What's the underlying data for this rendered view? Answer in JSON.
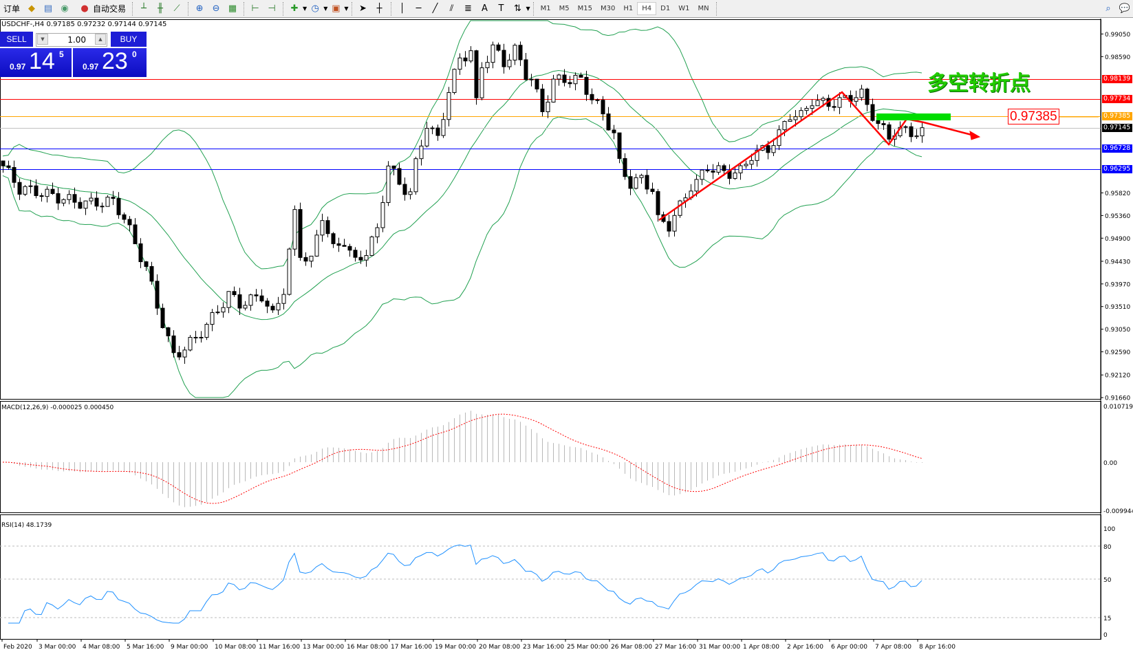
{
  "toolbar": {
    "new_order_label": "订单",
    "auto_trading_label": "自动交易",
    "timeframes": [
      "M1",
      "M5",
      "M15",
      "M30",
      "H1",
      "H4",
      "D1",
      "W1",
      "MN"
    ],
    "active_timeframe": "H4"
  },
  "chart": {
    "info": "USDCHF-,H4  0.97185 0.97232 0.97144 0.97145",
    "symbol": "USDCHF-",
    "timeframe": "H4",
    "ohlc": {
      "open": 0.97185,
      "high": 0.97232,
      "low": 0.97144,
      "close": 0.97145
    }
  },
  "trade_panel": {
    "sell_label": "SELL",
    "buy_label": "BUY",
    "lot": "1.00",
    "sell_price": {
      "prefix": "0.97",
      "big": "14",
      "sup": "5"
    },
    "buy_price": {
      "prefix": "0.97",
      "big": "23",
      "sup": "0"
    }
  },
  "price_axis": {
    "ticks": [
      "0.99050",
      "0.98590",
      "0.98139",
      "0.97734",
      "0.97385",
      "0.97145",
      "0.96728",
      "0.96295",
      "0.95820",
      "0.95360",
      "0.94900",
      "0.94430",
      "0.93970",
      "0.93510",
      "0.93050",
      "0.92590",
      "0.92120",
      "0.91660"
    ],
    "range": [
      0.9166,
      0.9905
    ]
  },
  "levels": [
    {
      "price": "0.98139",
      "color": "#ff0000"
    },
    {
      "price": "0.97734",
      "color": "#ff0000"
    },
    {
      "price": "0.97385",
      "color": "#ffa500"
    },
    {
      "price": "0.97145",
      "color": "#000000"
    },
    {
      "price": "0.96728",
      "color": "#0000ff"
    },
    {
      "price": "0.96295",
      "color": "#0000ff"
    }
  ],
  "annotation": {
    "text": "多空转折点",
    "price_label": "0.97385",
    "text_color": "#22cc00",
    "arrow_color": "#ff0000"
  },
  "macd": {
    "label": "MACD(12,26,9) -0.000025 0.000450",
    "axis": [
      "0.010719",
      "0.00",
      "-0.009944"
    ]
  },
  "rsi": {
    "label": "RSI(14) 48.1739",
    "axis": [
      "100",
      "80",
      "50",
      "15",
      "0"
    ],
    "levels": [
      80,
      50,
      15
    ],
    "color": "#1e90ff"
  },
  "time_axis": [
    "Feb 2020",
    "3 Mar 00:00",
    "4 Mar 08:00",
    "5 Mar 16:00",
    "9 Mar 00:00",
    "10 Mar 08:00",
    "11 Mar 16:00",
    "13 Mar 00:00",
    "16 Mar 08:00",
    "17 Mar 16:00",
    "19 Mar 00:00",
    "20 Mar 08:00",
    "23 Mar 16:00",
    "25 Mar 00:00",
    "26 Mar 08:00",
    "27 Mar 16:00",
    "31 Mar 00:00",
    "1 Apr 08:00",
    "2 Apr 16:00",
    "6 Apr 00:00",
    "7 Apr 08:00",
    "8 Apr 16:00"
  ],
  "chart_data": {
    "type": "candlestick",
    "close_keypoints": [
      [
        0,
        0.9637
      ],
      [
        3,
        0.9585
      ],
      [
        5,
        0.9581
      ],
      [
        11,
        0.9575
      ],
      [
        16,
        0.9563
      ],
      [
        20,
        0.9559
      ],
      [
        22,
        0.9526
      ],
      [
        24,
        0.9475
      ],
      [
        26,
        0.9431
      ],
      [
        28,
        0.9358
      ],
      [
        31,
        0.9255
      ],
      [
        33,
        0.927
      ],
      [
        35,
        0.9284
      ],
      [
        38,
        0.9321
      ],
      [
        41,
        0.9372
      ],
      [
        43,
        0.9358
      ],
      [
        47,
        0.938
      ],
      [
        49,
        0.9336
      ],
      [
        51,
        0.9387
      ],
      [
        53,
        0.9534
      ],
      [
        54,
        0.9453
      ],
      [
        56,
        0.9438
      ],
      [
        58,
        0.9534
      ],
      [
        60,
        0.9468
      ],
      [
        62,
        0.949
      ],
      [
        64,
        0.9446
      ],
      [
        66,
        0.9468
      ],
      [
        68,
        0.9504
      ],
      [
        70,
        0.9637
      ],
      [
        72,
        0.9592
      ],
      [
        74,
        0.9578
      ],
      [
        75,
        0.9637
      ],
      [
        77,
        0.9725
      ],
      [
        79,
        0.9695
      ],
      [
        81,
        0.9798
      ],
      [
        83,
        0.9857
      ],
      [
        85,
        0.9871
      ],
      [
        86,
        0.9761
      ],
      [
        87,
        0.9835
      ],
      [
        89,
        0.9871
      ],
      [
        91,
        0.9842
      ],
      [
        93,
        0.9871
      ],
      [
        95,
        0.9827
      ],
      [
        96,
        0.982
      ],
      [
        98,
        0.9754
      ],
      [
        100,
        0.9813
      ],
      [
        102,
        0.9813
      ],
      [
        105,
        0.9805
      ],
      [
        107,
        0.9769
      ],
      [
        109,
        0.9739
      ],
      [
        111,
        0.9703
      ],
      [
        112,
        0.9644
      ],
      [
        114,
        0.9607
      ],
      [
        116,
        0.9615
      ],
      [
        118,
        0.9592
      ],
      [
        119,
        0.9526
      ],
      [
        121,
        0.9512
      ],
      [
        123,
        0.9548
      ],
      [
        125,
        0.9592
      ],
      [
        126,
        0.96
      ],
      [
        128,
        0.9637
      ],
      [
        131,
        0.9629
      ],
      [
        134,
        0.9629
      ],
      [
        136,
        0.9659
      ],
      [
        139,
        0.9666
      ],
      [
        141,
        0.9695
      ],
      [
        143,
        0.9739
      ],
      [
        145,
        0.9739
      ],
      [
        147,
        0.9776
      ],
      [
        149,
        0.9769
      ],
      [
        152,
        0.9769
      ],
      [
        154,
        0.9776
      ],
      [
        156,
        0.9776
      ],
      [
        157,
        0.9754
      ],
      [
        159,
        0.9717
      ],
      [
        161,
        0.9695
      ],
      [
        162,
        0.971
      ],
      [
        164,
        0.9713
      ],
      [
        166,
        0.971
      ],
      [
        167,
        0.97145
      ]
    ],
    "indicators": [
      "Bollinger Bands(20,2)",
      "MACD(12,26,9)",
      "RSI(14)"
    ],
    "band_color": "#20a050"
  }
}
